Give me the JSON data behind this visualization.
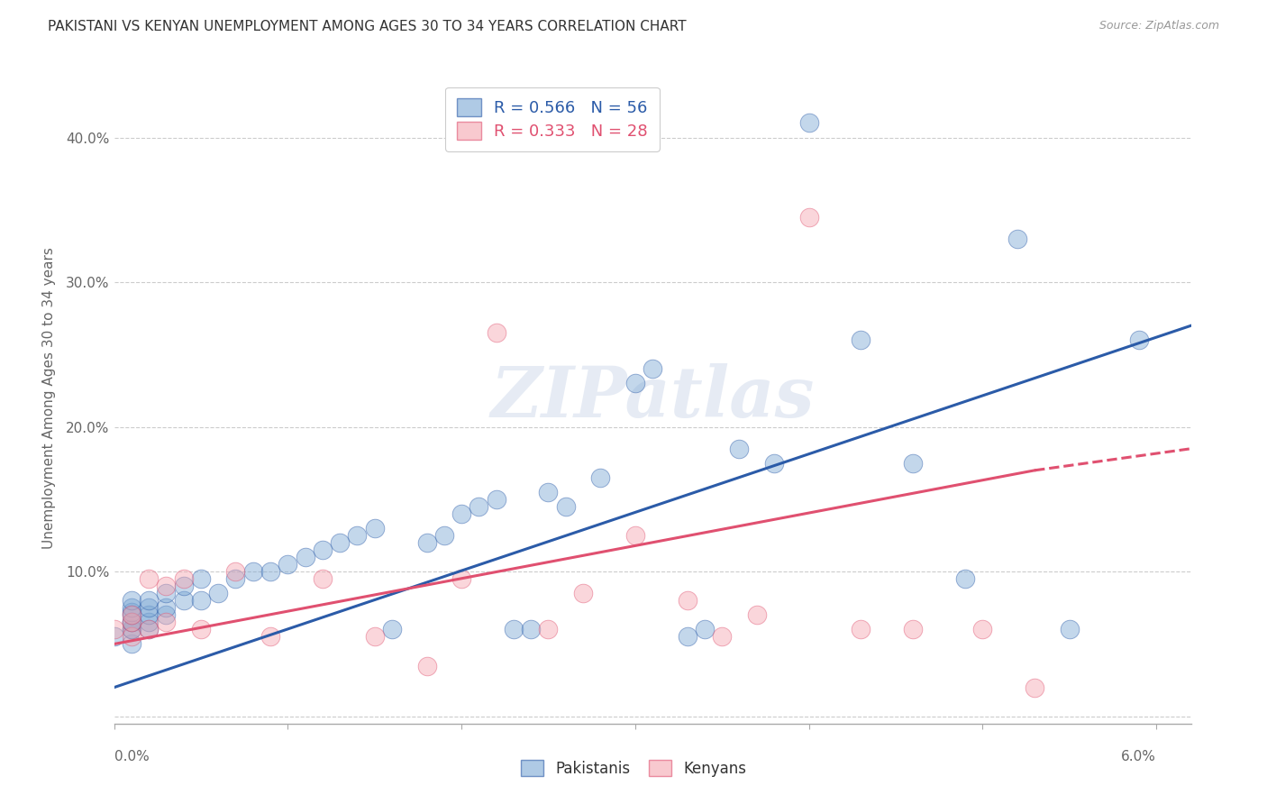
{
  "title": "PAKISTANI VS KENYAN UNEMPLOYMENT AMONG AGES 30 TO 34 YEARS CORRELATION CHART",
  "source": "Source: ZipAtlas.com",
  "ylabel": "Unemployment Among Ages 30 to 34 years",
  "xlim": [
    0.0,
    0.062
  ],
  "ylim": [
    -0.005,
    0.445
  ],
  "yticks": [
    0.0,
    0.1,
    0.2,
    0.3,
    0.4
  ],
  "ytick_labels": [
    "",
    "10.0%",
    "20.0%",
    "30.0%",
    "40.0%"
  ],
  "pakistanis_R": 0.566,
  "pakistanis_N": 56,
  "kenyans_R": 0.333,
  "kenyans_N": 28,
  "pakistanis_color": "#7BA7D4",
  "kenyans_color": "#F4A6B0",
  "trend_pakistanis_color": "#2B5BA8",
  "trend_kenyans_color": "#E05070",
  "watermark": "ZIPatlas",
  "pakistanis_x": [
    0.0,
    0.001,
    0.001,
    0.001,
    0.001,
    0.001,
    0.001,
    0.001,
    0.001,
    0.001,
    0.002,
    0.002,
    0.002,
    0.002,
    0.002,
    0.003,
    0.003,
    0.003,
    0.004,
    0.004,
    0.005,
    0.005,
    0.006,
    0.007,
    0.008,
    0.009,
    0.01,
    0.011,
    0.012,
    0.013,
    0.014,
    0.015,
    0.016,
    0.018,
    0.019,
    0.02,
    0.021,
    0.022,
    0.023,
    0.024,
    0.025,
    0.026,
    0.028,
    0.03,
    0.031,
    0.033,
    0.034,
    0.036,
    0.038,
    0.04,
    0.043,
    0.046,
    0.049,
    0.052,
    0.055,
    0.059
  ],
  "pakistanis_y": [
    0.055,
    0.05,
    0.06,
    0.06,
    0.065,
    0.065,
    0.07,
    0.072,
    0.075,
    0.08,
    0.06,
    0.065,
    0.07,
    0.075,
    0.08,
    0.07,
    0.075,
    0.085,
    0.08,
    0.09,
    0.08,
    0.095,
    0.085,
    0.095,
    0.1,
    0.1,
    0.105,
    0.11,
    0.115,
    0.12,
    0.125,
    0.13,
    0.06,
    0.12,
    0.125,
    0.14,
    0.145,
    0.15,
    0.06,
    0.06,
    0.155,
    0.145,
    0.165,
    0.23,
    0.24,
    0.055,
    0.06,
    0.185,
    0.175,
    0.41,
    0.26,
    0.175,
    0.095,
    0.33,
    0.06,
    0.26
  ],
  "kenyans_x": [
    0.0,
    0.001,
    0.001,
    0.001,
    0.002,
    0.002,
    0.003,
    0.003,
    0.004,
    0.005,
    0.007,
    0.009,
    0.012,
    0.015,
    0.018,
    0.02,
    0.022,
    0.025,
    0.027,
    0.03,
    0.033,
    0.035,
    0.037,
    0.04,
    0.043,
    0.046,
    0.05,
    0.053
  ],
  "kenyans_y": [
    0.06,
    0.055,
    0.065,
    0.07,
    0.06,
    0.095,
    0.065,
    0.09,
    0.095,
    0.06,
    0.1,
    0.055,
    0.095,
    0.055,
    0.035,
    0.095,
    0.265,
    0.06,
    0.085,
    0.125,
    0.08,
    0.055,
    0.07,
    0.345,
    0.06,
    0.06,
    0.06,
    0.02
  ],
  "trend_p_x0": 0.0,
  "trend_p_y0": 0.02,
  "trend_p_x1": 0.062,
  "trend_p_y1": 0.27,
  "trend_k_x0": 0.0,
  "trend_k_y0": 0.05,
  "trend_k_x1": 0.053,
  "trend_k_y1": 0.17,
  "trend_k_dash_x1": 0.062,
  "trend_k_dash_y1": 0.185
}
